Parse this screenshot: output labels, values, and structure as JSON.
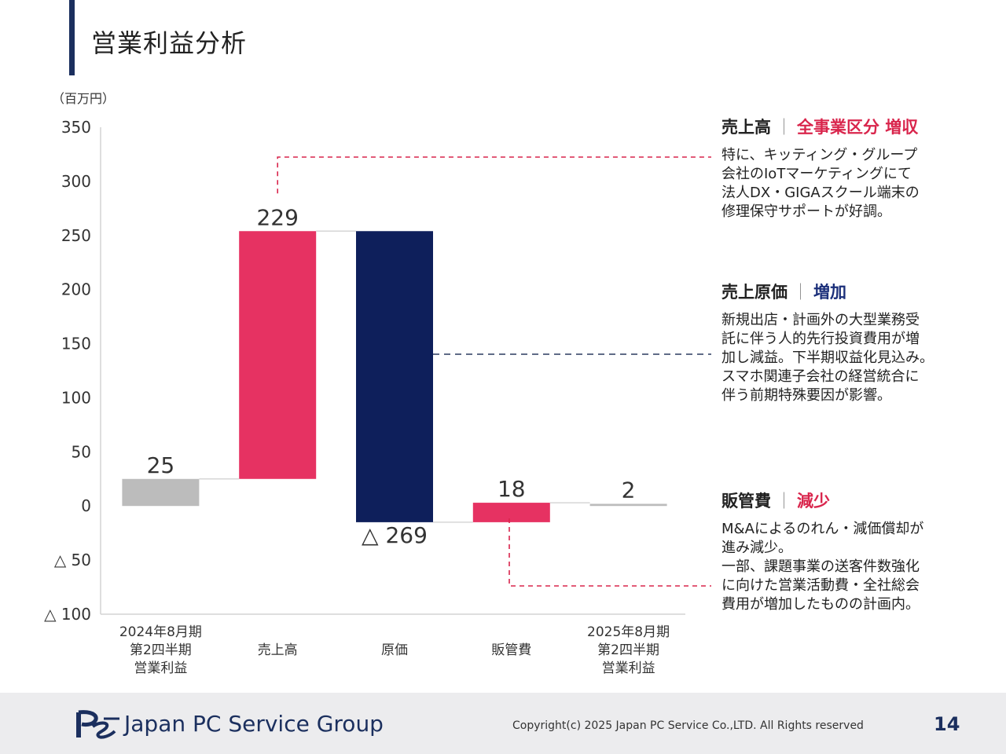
{
  "page": {
    "title": "営業利益分析",
    "page_number": "14"
  },
  "colors": {
    "navy": "#1b2f5e",
    "increase": "#e63262",
    "cost": "#0e1f5b",
    "total": "#bcbcbc",
    "accent_red": "#d9254c",
    "accent_navy": "#1b2f7a"
  },
  "chart_data": {
    "type": "waterfall",
    "unit_label": "（百万円）",
    "ylim": [
      -100,
      350
    ],
    "yticks": [
      {
        "value": 350,
        "label": "350"
      },
      {
        "value": 300,
        "label": "300"
      },
      {
        "value": 250,
        "label": "250"
      },
      {
        "value": 200,
        "label": "200"
      },
      {
        "value": 150,
        "label": "150"
      },
      {
        "value": 100,
        "label": "100"
      },
      {
        "value": 50,
        "label": "50"
      },
      {
        "value": 0,
        "label": "0"
      },
      {
        "value": -50,
        "label": "△ 50"
      },
      {
        "value": -100,
        "label": "△ 100"
      }
    ],
    "bars": [
      {
        "category": "2024年8月期\n第2四半期\n営業利益",
        "start": 0,
        "end": 25,
        "label": "25",
        "kind": "total",
        "color": "#bcbcbc"
      },
      {
        "category": "売上高",
        "start": 25,
        "end": 254,
        "label": "229",
        "kind": "increase",
        "color": "#e63262"
      },
      {
        "category": "原価",
        "start": 254,
        "end": -15,
        "label": "△ 269",
        "kind": "decrease",
        "color": "#0e1f5b"
      },
      {
        "category": "販管費",
        "start": -15,
        "end": 3,
        "label": "18",
        "kind": "increase",
        "color": "#e63262"
      },
      {
        "category": "2025年8月期\n第2四半期\n営業利益",
        "start": 0,
        "end": 2,
        "label": "2",
        "kind": "total",
        "color": "#bcbcbc"
      }
    ]
  },
  "annotations": [
    {
      "head": "売上高",
      "separator": "｜",
      "highlight": "全事業区分 増収",
      "highlight_color": "#d9254c",
      "body": "特に、キッティング・グループ\n会社のIoTマーケティングにて\n法人DX・GIGAスクール端末の\n修理保守サポートが好調。"
    },
    {
      "head": "売上原価",
      "separator": "｜",
      "highlight": "増加",
      "highlight_color": "#1b2f7a",
      "body": "新規出店・計画外の大型業務受\n託に伴う人的先行投資費用が増\n加し減益。下半期収益化見込み。\nスマホ関連子会社の経営統合に\n伴う前期特殊要因が影響。"
    },
    {
      "head": "販管費",
      "separator": "｜",
      "highlight": "減少",
      "highlight_color": "#d9254c",
      "body": "M&Aによるのれん・減価償却が\n進み減少。\n一部、課題事業の送客件数強化\nに向けた営業活動費・全社総会\n費用が増加したものの計画内。"
    }
  ],
  "footer": {
    "company": "Japan PC Service Group",
    "copyright": "Copyright(c) 2025 Japan PC Service Co.,LTD. All Rights reserved"
  }
}
